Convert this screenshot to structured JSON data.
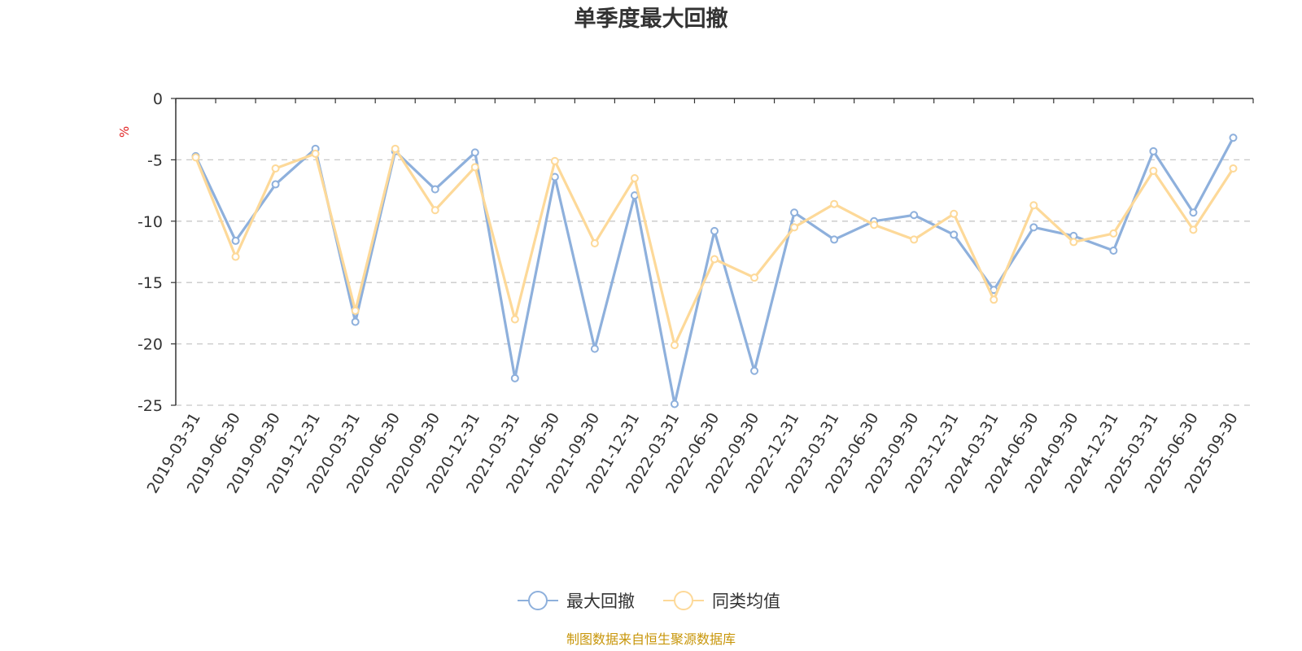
{
  "chart_data": {
    "type": "line",
    "title": "单季度最大回撤",
    "ylabel": "%",
    "xlabel": "",
    "ylim": [
      -25,
      0
    ],
    "yticks": [
      0,
      -5,
      -10,
      -15,
      -20,
      -25
    ],
    "grid": true,
    "legend_position": "bottom-center",
    "categories": [
      "2019-03-31",
      "2019-06-30",
      "2019-09-30",
      "2019-12-31",
      "2020-03-31",
      "2020-06-30",
      "2020-09-30",
      "2020-12-31",
      "2021-03-31",
      "2021-06-30",
      "2021-09-30",
      "2021-12-31",
      "2022-03-31",
      "2022-06-30",
      "2022-09-30",
      "2022-12-31",
      "2023-03-31",
      "2023-06-30",
      "2023-09-30",
      "2023-12-31",
      "2024-03-31",
      "2024-06-30",
      "2024-09-30",
      "2024-12-31",
      "2025-03-31",
      "2025-06-30",
      "2025-09-30"
    ],
    "series": [
      {
        "name": "最大回撤",
        "color": "#8eb0dc",
        "values": [
          -4.7,
          -11.6,
          -7.0,
          -4.1,
          -18.2,
          -4.3,
          -7.4,
          -4.4,
          -22.8,
          -6.4,
          -20.4,
          -7.9,
          -24.9,
          -10.8,
          -22.2,
          -9.3,
          -11.5,
          -10.0,
          -9.5,
          -11.1,
          -15.6,
          -10.5,
          -11.2,
          -12.4,
          -4.3,
          -9.3,
          -3.2
        ]
      },
      {
        "name": "同类均值",
        "color": "#fdd999",
        "values": [
          -4.8,
          -12.9,
          -5.7,
          -4.5,
          -17.3,
          -4.1,
          -9.1,
          -5.6,
          -18.0,
          -5.1,
          -11.8,
          -6.5,
          -20.1,
          -13.1,
          -14.6,
          -10.5,
          -8.6,
          -10.3,
          -11.5,
          -9.4,
          -16.4,
          -8.7,
          -11.7,
          -11.0,
          -5.9,
          -10.7,
          -5.7
        ]
      }
    ]
  },
  "source_text": "制图数据来自恒生聚源数据库"
}
